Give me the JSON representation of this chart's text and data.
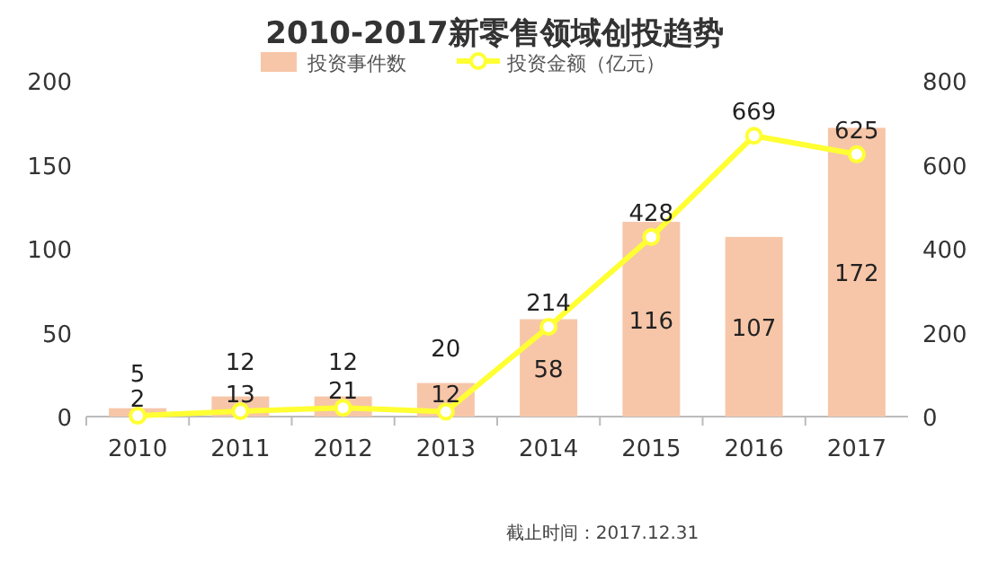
{
  "chart_data": {
    "type": "bar",
    "title": "2010-2017新零售领域创投趋势",
    "categories": [
      "2010",
      "2011",
      "2012",
      "2013",
      "2014",
      "2015",
      "2016",
      "2017"
    ],
    "series": [
      {
        "name": "投资事件数",
        "color": "#f7c6a8",
        "values": [
          5,
          12,
          12,
          20,
          58,
          116,
          107,
          172
        ]
      },
      {
        "name": "投资金额（亿元）",
        "type": "line",
        "axis": "y2",
        "color": "#ffff33",
        "marker": "circle",
        "values": [
          2,
          13,
          21,
          12,
          214,
          428,
          669,
          625
        ]
      }
    ],
    "ylim": [
      0,
      200
    ],
    "yticks": [
      0,
      50,
      100,
      150,
      200
    ],
    "y2lim": [
      0,
      800
    ],
    "y2ticks": [
      0,
      200,
      400,
      600,
      800
    ],
    "data_labels": true,
    "legend": "top",
    "grid": false,
    "annotations": [
      "截止时间：2017.12.31"
    ]
  }
}
